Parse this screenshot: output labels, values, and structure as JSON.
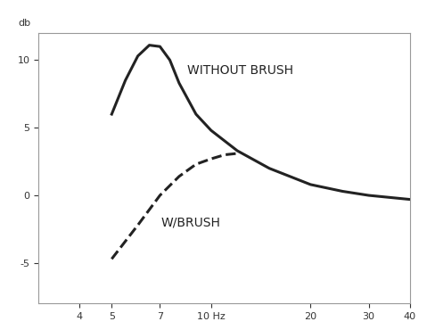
{
  "chart_data": {
    "type": "line",
    "y_label": "db",
    "log": "x",
    "xlim": [
      3,
      40
    ],
    "ylim": [
      -8,
      12
    ],
    "xticks": [
      4,
      5,
      7,
      {
        "value": 10,
        "label": "10 Hz"
      },
      20,
      30,
      40
    ],
    "yticks": [
      -5,
      0,
      5,
      10
    ],
    "grid": false,
    "series": [
      {
        "name": "WITHOUT BRUSH",
        "color": "#222222",
        "line_style": "solid",
        "x": [
          5,
          5.5,
          6,
          6.5,
          7,
          7.5,
          8,
          9,
          10,
          12,
          15,
          20,
          25,
          30,
          40
        ],
        "values": [
          6,
          8.5,
          10.3,
          11.1,
          11,
          10,
          8.3,
          6,
          4.8,
          3.3,
          2,
          0.8,
          0.3,
          0,
          -0.3
        ]
      },
      {
        "name": "W/BRUSH",
        "color": "#222222",
        "line_style": "dashed",
        "x": [
          5,
          6,
          7,
          8,
          9,
          10,
          11,
          12
        ],
        "values": [
          -4.7,
          -2.2,
          0,
          1.4,
          2.3,
          2.7,
          3,
          3.1
        ]
      }
    ]
  }
}
